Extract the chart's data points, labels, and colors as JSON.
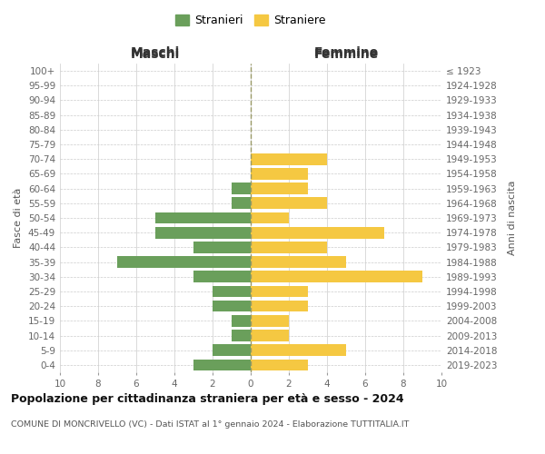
{
  "age_groups": [
    "0-4",
    "5-9",
    "10-14",
    "15-19",
    "20-24",
    "25-29",
    "30-34",
    "35-39",
    "40-44",
    "45-49",
    "50-54",
    "55-59",
    "60-64",
    "65-69",
    "70-74",
    "75-79",
    "80-84",
    "85-89",
    "90-94",
    "95-99",
    "100+"
  ],
  "birth_years": [
    "2019-2023",
    "2014-2018",
    "2009-2013",
    "2004-2008",
    "1999-2003",
    "1994-1998",
    "1989-1993",
    "1984-1988",
    "1979-1983",
    "1974-1978",
    "1969-1973",
    "1964-1968",
    "1959-1963",
    "1954-1958",
    "1949-1953",
    "1944-1948",
    "1939-1943",
    "1934-1938",
    "1929-1933",
    "1924-1928",
    "≤ 1923"
  ],
  "maschi": [
    3,
    2,
    1,
    1,
    2,
    2,
    3,
    7,
    3,
    5,
    5,
    1,
    1,
    0,
    0,
    0,
    0,
    0,
    0,
    0,
    0
  ],
  "femmine": [
    3,
    5,
    2,
    2,
    3,
    3,
    9,
    5,
    4,
    7,
    2,
    4,
    3,
    3,
    4,
    0,
    0,
    0,
    0,
    0,
    0
  ],
  "maschi_color": "#6a9f5b",
  "femmine_color": "#f5c842",
  "title": "Popolazione per cittadinanza straniera per età e sesso - 2024",
  "subtitle": "COMUNE DI MONCRIVELLO (VC) - Dati ISTAT al 1° gennaio 2024 - Elaborazione TUTTITALIA.IT",
  "ylabel_left": "Fasce di età",
  "ylabel_right": "Anni di nascita",
  "xlabel_maschi": "Maschi",
  "xlabel_femmine": "Femmine",
  "legend_stranieri": "Stranieri",
  "legend_straniere": "Straniere",
  "xlim": 10,
  "bg_color": "#ffffff",
  "grid_color": "#cccccc"
}
